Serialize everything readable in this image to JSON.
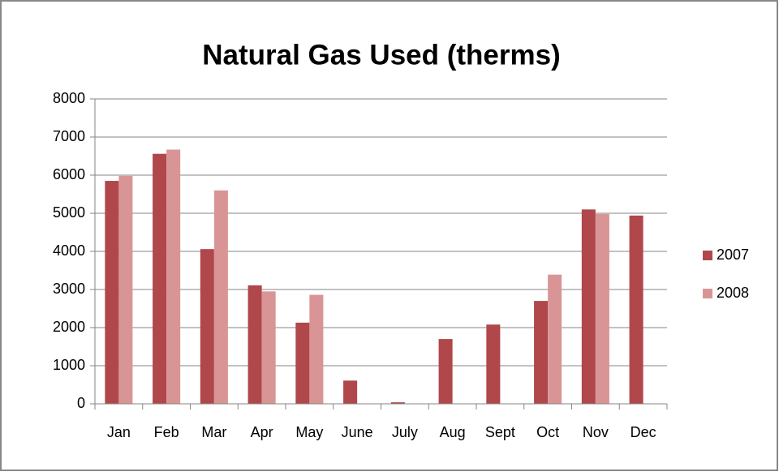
{
  "chart_data": {
    "type": "bar",
    "title": "Natural Gas Used (therms)",
    "categories": [
      "Jan",
      "Feb",
      "Mar",
      "Apr",
      "May",
      "June",
      "July",
      "Aug",
      "Sept",
      "Oct",
      "Nov",
      "Dec"
    ],
    "series": [
      {
        "name": "2007",
        "color": "#b0474a",
        "values": [
          5850,
          6560,
          4060,
          3110,
          2130,
          610,
          40,
          1700,
          2080,
          2700,
          5100,
          4940
        ]
      },
      {
        "name": "2008",
        "color": "#d99595",
        "values": [
          5980,
          6670,
          5600,
          2950,
          2860,
          null,
          null,
          null,
          null,
          3390,
          4980,
          null
        ]
      }
    ],
    "ylim": [
      0,
      8000
    ],
    "yticks": [
      0,
      1000,
      2000,
      3000,
      4000,
      5000,
      6000,
      7000,
      8000
    ],
    "grid": true,
    "legend": "right"
  }
}
